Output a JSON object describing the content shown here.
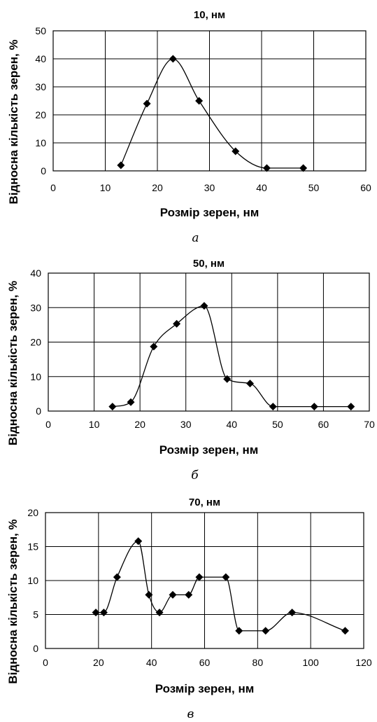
{
  "chart_data": [
    {
      "type": "line",
      "title": "10, нм",
      "xlabel": "Розмір зерен, нм",
      "ylabel": "Відносна кількість зерен, %",
      "caption": "а",
      "xlim": [
        0,
        60
      ],
      "ylim": [
        0,
        50
      ],
      "x_ticks": [
        0,
        10,
        20,
        30,
        40,
        50,
        60
      ],
      "y_ticks": [
        0,
        10,
        20,
        30,
        40,
        50
      ],
      "grid": true,
      "marker": "diamond",
      "smooth": true,
      "series": [
        {
          "x": [
            13,
            18,
            23,
            28,
            35,
            41,
            48
          ],
          "y": [
            2,
            24,
            40,
            25,
            7,
            1,
            1
          ]
        }
      ]
    },
    {
      "type": "line",
      "title": "50, нм",
      "xlabel": "Розмір зерен, нм",
      "ylabel": "Відносна кількість зерен, %",
      "caption": "б",
      "xlim": [
        0,
        70
      ],
      "ylim": [
        0,
        40
      ],
      "x_ticks": [
        0,
        10,
        20,
        30,
        40,
        50,
        60,
        70
      ],
      "y_ticks": [
        0,
        10,
        20,
        30,
        40
      ],
      "grid": true,
      "marker": "diamond",
      "smooth": true,
      "series": [
        {
          "x": [
            14,
            18,
            23,
            28,
            34,
            39,
            44,
            49,
            58,
            66
          ],
          "y": [
            1.3,
            2.6,
            18.7,
            25.3,
            30.5,
            9.3,
            8,
            1.3,
            1.3,
            1.3
          ]
        }
      ]
    },
    {
      "type": "line",
      "title": "70, нм",
      "xlabel": "Розмір зерен, нм",
      "ylabel": "Відносна кількість зерен, %",
      "caption": "в",
      "xlim": [
        0,
        120
      ],
      "ylim": [
        0,
        20
      ],
      "x_ticks": [
        0,
        20,
        40,
        60,
        80,
        100,
        120
      ],
      "y_ticks": [
        0,
        5,
        10,
        15,
        20
      ],
      "grid": true,
      "marker": "diamond",
      "smooth": true,
      "series": [
        {
          "x": [
            19,
            22,
            27,
            35,
            39,
            43,
            48,
            54,
            58,
            68,
            73,
            83,
            93,
            113
          ],
          "y": [
            5.3,
            5.3,
            10.5,
            15.8,
            7.9,
            5.3,
            7.9,
            7.9,
            10.5,
            10.5,
            2.6,
            2.6,
            5.3,
            2.6
          ]
        }
      ]
    }
  ]
}
